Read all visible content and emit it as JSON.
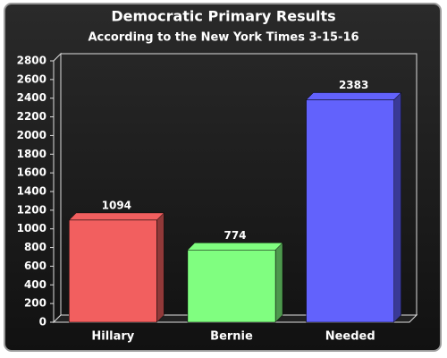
{
  "chart_data": {
    "type": "bar3d",
    "title": "Democratic Primary Results",
    "subtitle": "According to the New York Times 3-15-16",
    "categories": [
      "Hillary",
      "Bernie",
      "Needed"
    ],
    "values": [
      1094,
      774,
      2383
    ],
    "colors": [
      "#f25f5f",
      "#80fe80",
      "#6262fc"
    ],
    "ylim": [
      0,
      2800
    ],
    "yticks": [
      0,
      200,
      400,
      600,
      800,
      1000,
      1200,
      1400,
      1600,
      1800,
      2000,
      2200,
      2400,
      2600,
      2800
    ]
  }
}
